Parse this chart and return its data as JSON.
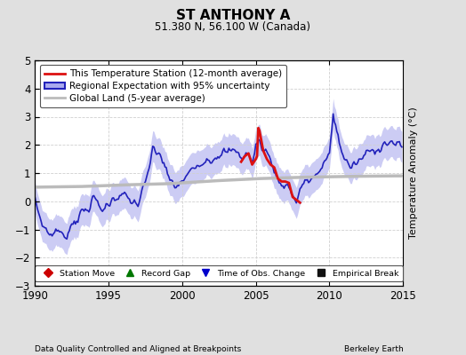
{
  "title": "ST ANTHONY A",
  "subtitle": "51.380 N, 56.100 W (Canada)",
  "ylabel": "Temperature Anomaly (°C)",
  "xlabel_left": "Data Quality Controlled and Aligned at Breakpoints",
  "xlabel_right": "Berkeley Earth",
  "ylim": [
    -3,
    5
  ],
  "xlim": [
    1990,
    2015
  ],
  "yticks": [
    -3,
    -2,
    -1,
    0,
    1,
    2,
    3,
    4,
    5
  ],
  "xticks": [
    1990,
    1995,
    2000,
    2005,
    2010,
    2015
  ],
  "background_color": "#e0e0e0",
  "plot_bg_color": "#ffffff",
  "grid_color": "#cccccc",
  "regional_fill_color": "#aaaaee",
  "regional_line_color": "#2222bb",
  "station_line_color": "#dd1111",
  "global_line_color": "#bbbbbb",
  "legend_items": [
    {
      "label": "This Temperature Station (12-month average)",
      "color": "#dd1111",
      "lw": 2.0
    },
    {
      "label": "Regional Expectation with 95% uncertainty",
      "color": "#2222bb",
      "lw": 1.5
    },
    {
      "label": "Global Land (5-year average)",
      "color": "#bbbbbb",
      "lw": 2.0
    }
  ],
  "marker_legend": [
    {
      "marker": "D",
      "color": "#cc0000",
      "label": "Station Move"
    },
    {
      "marker": "^",
      "color": "#007700",
      "label": "Record Gap"
    },
    {
      "marker": "v",
      "color": "#0000cc",
      "label": "Time of Obs. Change"
    },
    {
      "marker": "s",
      "color": "#111111",
      "label": "Empirical Break"
    }
  ]
}
